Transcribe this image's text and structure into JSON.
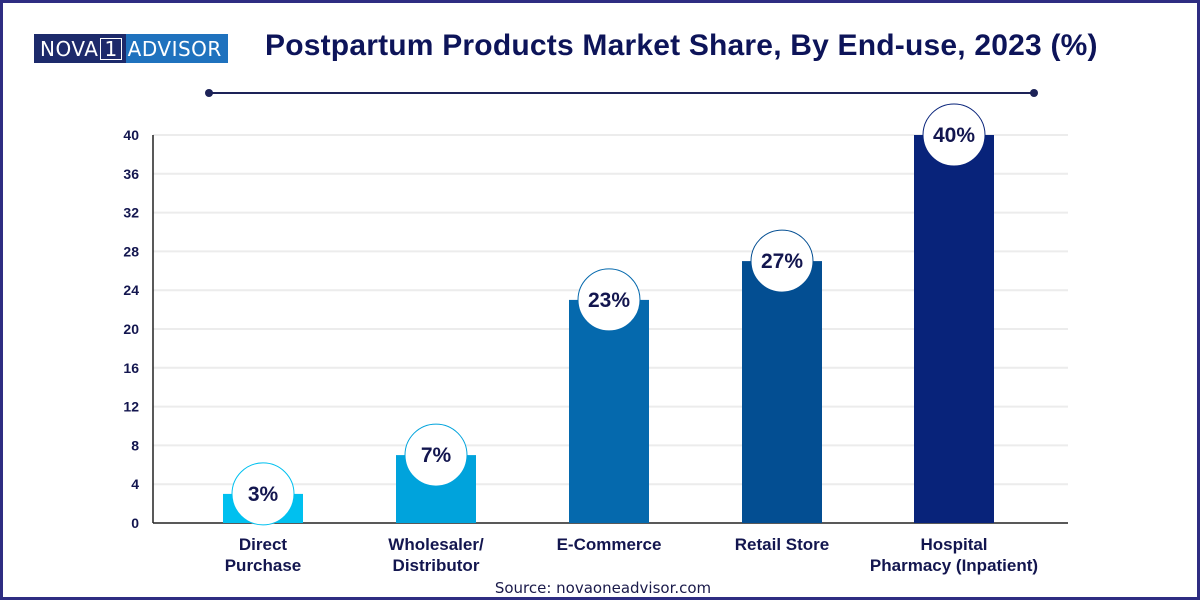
{
  "logo": {
    "left": "NOVA",
    "mid": "1",
    "right": "ADVISOR"
  },
  "source": "Source: novaoneadvisor.com",
  "chart_data": {
    "type": "bar",
    "title": "Postpartum Products Market Share, By End-use, 2023 (%)",
    "xlabel": "",
    "ylabel": "",
    "ylim": [
      0,
      40
    ],
    "yticks": [
      0,
      4,
      8,
      12,
      16,
      20,
      24,
      28,
      32,
      36,
      40
    ],
    "grid": true,
    "categories": [
      [
        "Direct",
        "Purchase"
      ],
      [
        "Wholesaler/",
        "Distributor"
      ],
      [
        "E-Commerce"
      ],
      [
        "Retail Store"
      ],
      [
        "Hospital",
        "Pharmacy (Inpatient)"
      ]
    ],
    "values": [
      3,
      7,
      23,
      27,
      40
    ],
    "data_labels": [
      "3%",
      "7%",
      "23%",
      "27%",
      "40%"
    ],
    "colors": [
      "#00c0ef",
      "#00a3dc",
      "#0569ad",
      "#034e92",
      "#08237a"
    ]
  }
}
